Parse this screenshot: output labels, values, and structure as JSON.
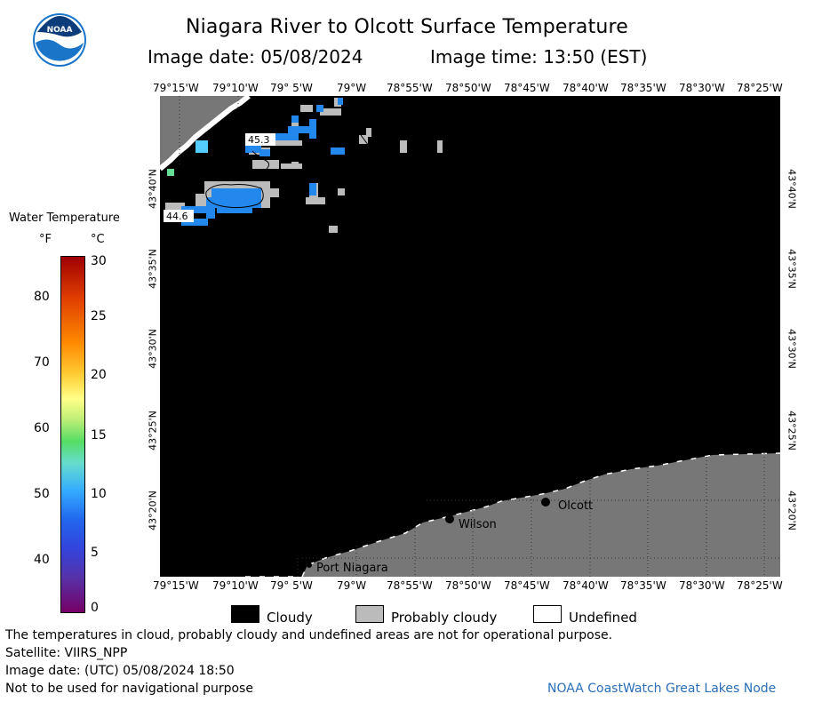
{
  "header": {
    "title": "Niagara River to Olcott Surface Temperature",
    "image_date": "Image date: 05/08/2024",
    "image_time": "Image time: 13:50 (EST)"
  },
  "logo": {
    "text": "NOAA"
  },
  "map": {
    "lon_ticks": [
      "79°15'W",
      "79°10'W",
      "79° 5'W",
      "79°W",
      "78°55'W",
      "78°50'W",
      "78°45'W",
      "78°40'W",
      "78°35'W",
      "78°30'W",
      "78°25'W"
    ],
    "lat_ticks": [
      "43°40'N",
      "43°35'N",
      "43°30'N",
      "43°25'N",
      "43°20'N"
    ],
    "places": {
      "olcott": "Olcott",
      "wilson": "Wilson",
      "port_niagara": "Port Niagara"
    },
    "temp_labels": [
      "45.3",
      "44.6"
    ]
  },
  "legend": {
    "title": "Water Temperature",
    "unit_f": "°F",
    "unit_c": "°C",
    "f_ticks": [
      "80",
      "70",
      "60",
      "50",
      "40"
    ],
    "c_ticks": [
      "30",
      "25",
      "20",
      "15",
      "10",
      "5",
      "0"
    ],
    "categories": [
      {
        "label": "Cloudy",
        "color": "#000000"
      },
      {
        "label": "Probably cloudy",
        "color": "#bbbbbb"
      },
      {
        "label": "Undefined",
        "color": "#ffffff"
      }
    ]
  },
  "footer": {
    "note": "The temperatures in cloud, probably cloudy and undefined areas are not for operational purpose.",
    "satellite": "Satellite: VIIRS_NPP",
    "utc": "Image date: (UTC) 05/08/2024  18:50",
    "nav_warning": "Not to be used for navigational purpose",
    "credit": "NOAA CoastWatch Great Lakes Node"
  },
  "colors": {
    "land": "#777777",
    "cloud": "#000000",
    "water_blue": "#2288ee",
    "probably_cloudy": "#bbbbbb"
  }
}
